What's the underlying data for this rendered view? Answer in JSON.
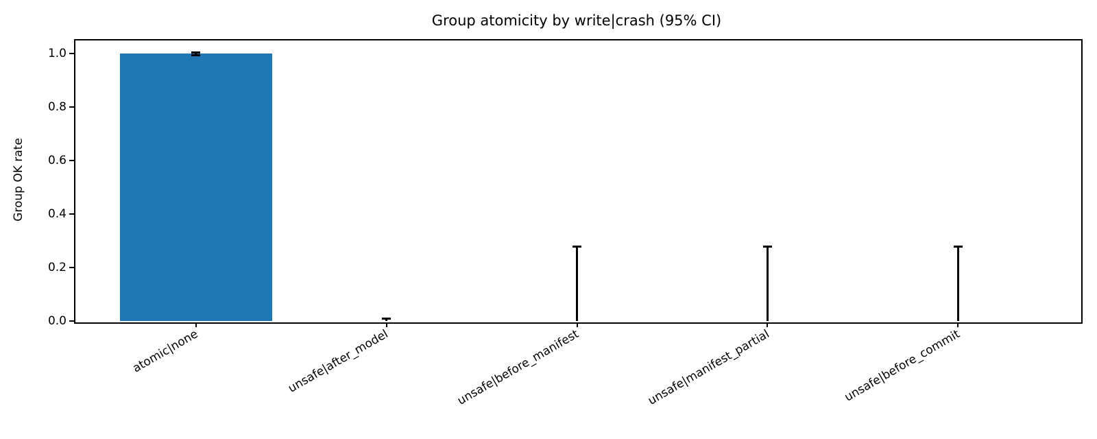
{
  "figure": {
    "background": "#ffffff"
  },
  "chart_data": {
    "type": "bar",
    "title": "Group atomicity by write|crash (95% CI)",
    "ylabel": "Group OK rate",
    "xlabel": "",
    "categories": [
      "atomic|none",
      "unsafe|after_model",
      "unsafe|before_manifest",
      "unsafe|manifest_partial",
      "unsafe|before_commit"
    ],
    "values": [
      0.999,
      0.0,
      0.0,
      0.0,
      0.0
    ],
    "ci_low": [
      0.995,
      0.0,
      0.0,
      0.0,
      0.0
    ],
    "ci_high": [
      1.003,
      0.01,
      0.278,
      0.278,
      0.278
    ],
    "yticks": [
      0.0,
      0.2,
      0.4,
      0.6,
      0.8,
      1.0
    ],
    "ylim": [
      0,
      1.054
    ],
    "xlim": [
      -0.64,
      4.64
    ],
    "bar_width_fraction": 0.8,
    "tick_label_rotation_deg": 30,
    "grid": false,
    "legend": null,
    "bar_color": "#1f77b4",
    "error_color": "#000000",
    "axis_color": "#000000",
    "text_color": "#000000"
  }
}
